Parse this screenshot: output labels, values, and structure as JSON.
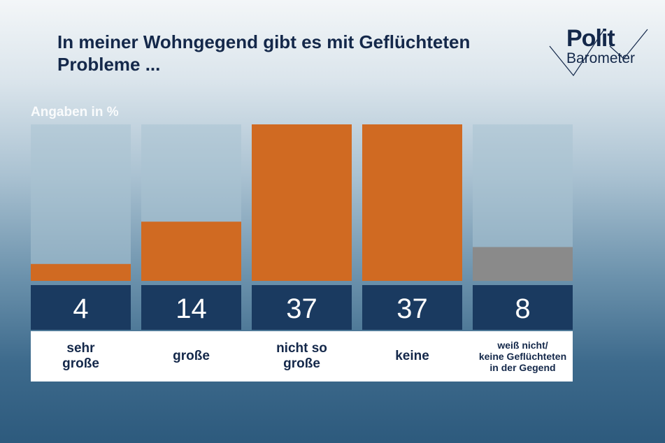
{
  "title": "In meiner Wohngegend gibt es mit Geflüchteten Probleme ...",
  "logo": {
    "line1": "Polit",
    "line2": "Barometer"
  },
  "chart_data": {
    "type": "bar",
    "subtitle": "Angaben in %",
    "categories": [
      "sehr\ngroße",
      "große",
      "nicht so\ngroße",
      "keine",
      "weiß nicht/\nkeine Geflüchteten\nin der Gegend"
    ],
    "values": [
      4,
      14,
      37,
      37,
      8
    ],
    "value_labels": [
      "4",
      "14",
      "37",
      "37",
      "8"
    ],
    "ylim": [
      0,
      37
    ],
    "colors": [
      "#d06a22",
      "#d06a22",
      "#d06a22",
      "#d06a22",
      "#8a8a8a"
    ],
    "colors_meta": {
      "track": "#a9c2d2",
      "value_band": "#1a3a60",
      "label_band": "#ffffff",
      "text": "#14284a"
    }
  }
}
